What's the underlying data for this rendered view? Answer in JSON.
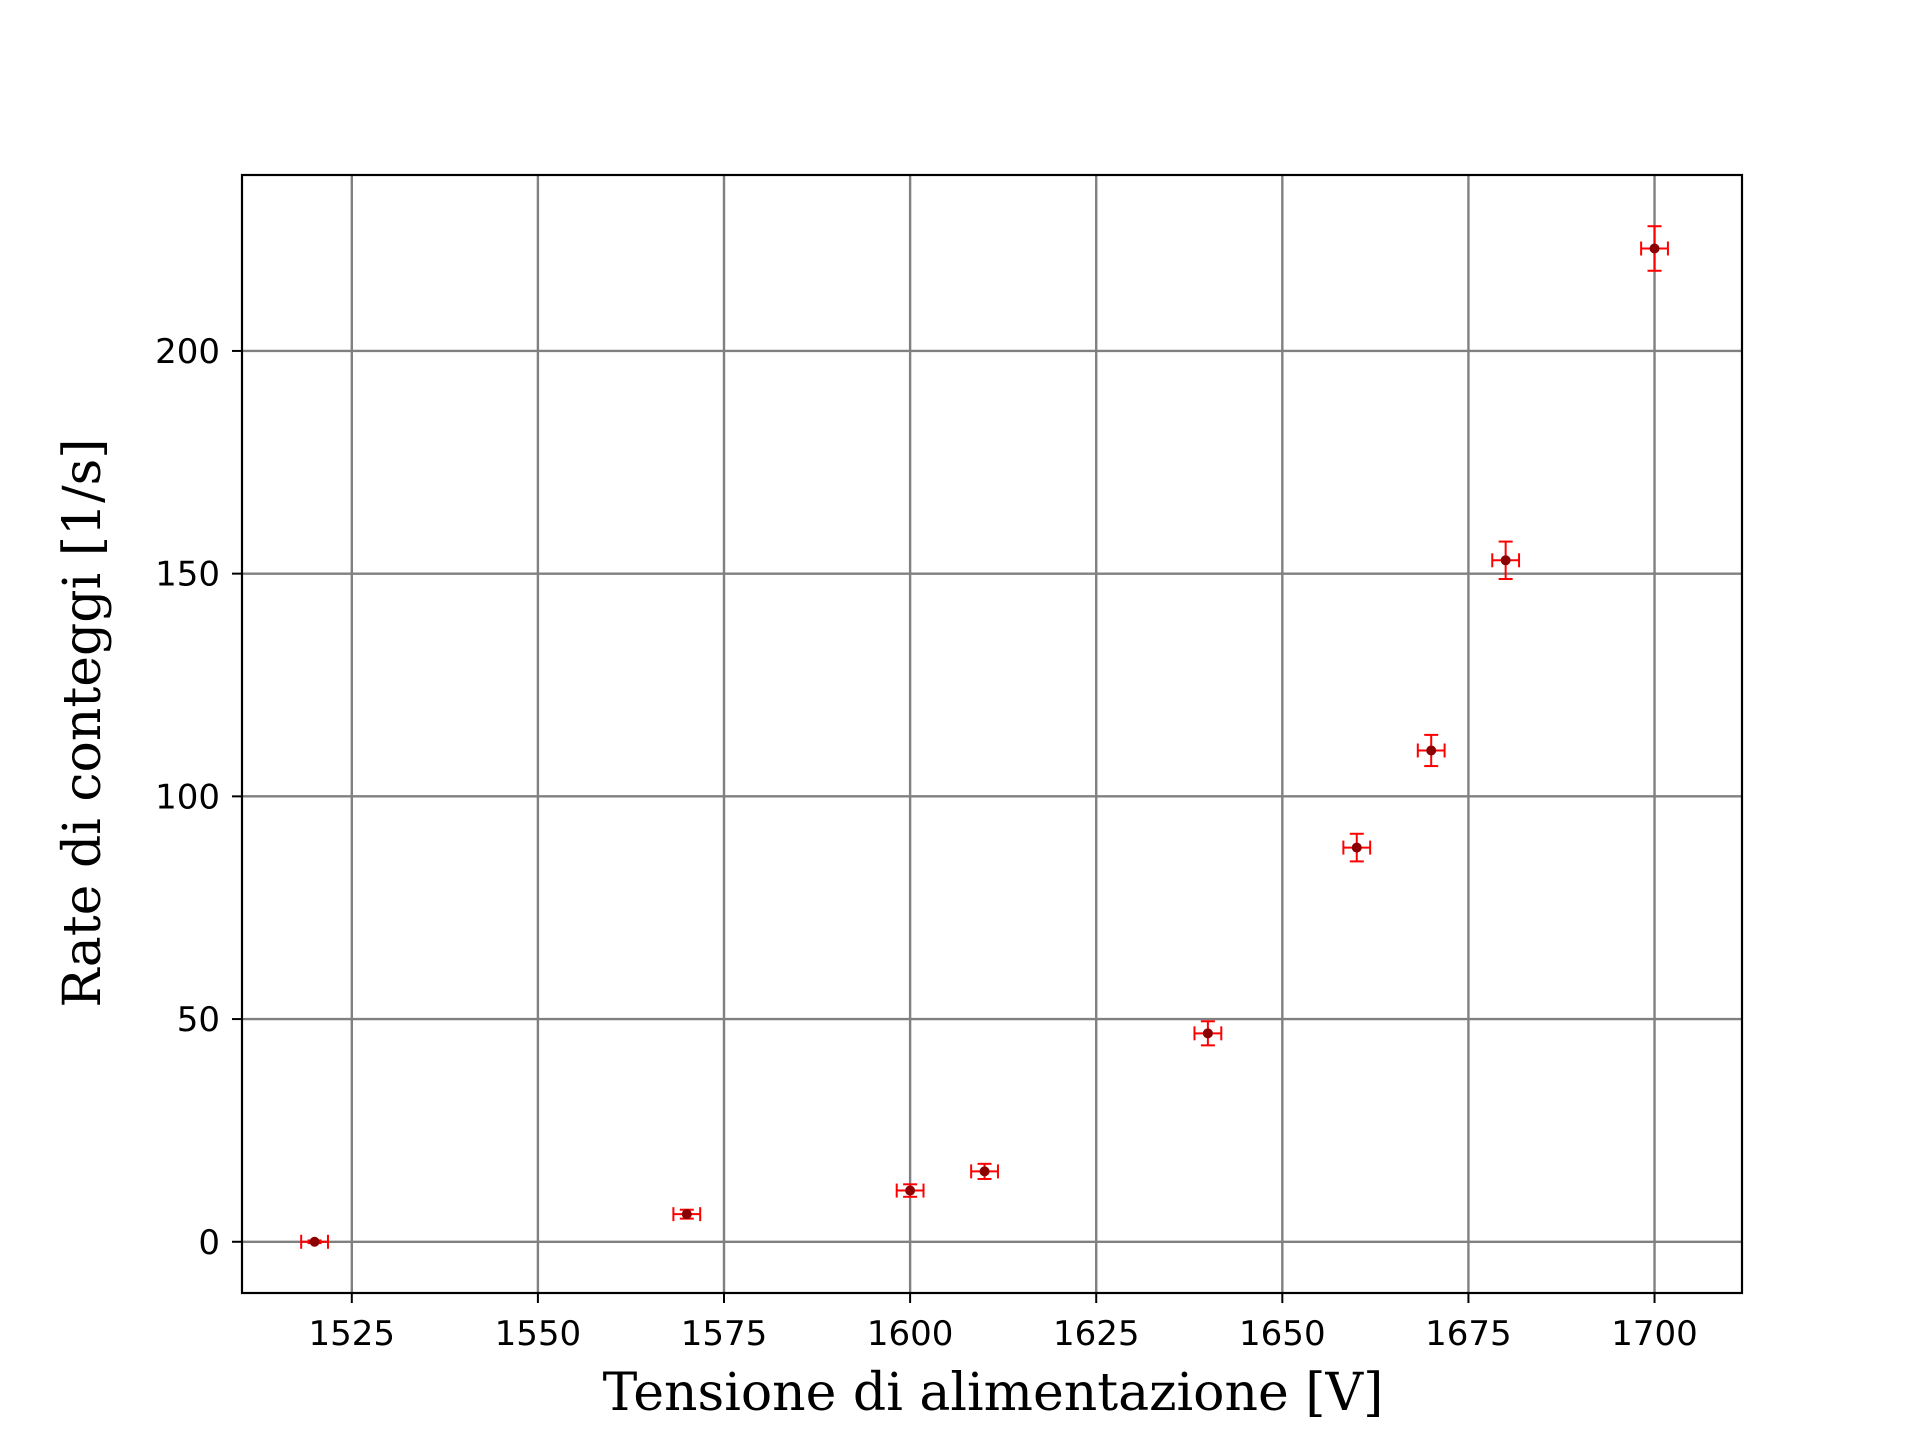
{
  "chart_data": {
    "type": "scatter",
    "title": "",
    "xlabel": "Tensione di alimentazione [V]",
    "ylabel": "Rate di conteggi [1/s]",
    "xlim": [
      1510.25,
      1711.75
    ],
    "ylim": [
      -11.5,
      239.5
    ],
    "xticks": [
      1525,
      1550,
      1575,
      1600,
      1625,
      1650,
      1675,
      1700
    ],
    "xtick_labels": [
      "1525",
      "1550",
      "1575",
      "1600",
      "1625",
      "1650",
      "1675",
      "1700"
    ],
    "yticks": [
      0,
      50,
      100,
      150,
      200
    ],
    "ytick_labels": [
      "0",
      "50",
      "100",
      "150",
      "200"
    ],
    "grid": true,
    "colors": {
      "marker": "#8b0000",
      "errorbar": "#ff0000",
      "grid": "#808080",
      "axes": "#000000"
    },
    "series": [
      {
        "x": [
          1520,
          1570,
          1600,
          1610,
          1640,
          1660,
          1670,
          1680,
          1700
        ],
        "y": [
          0.0,
          6.2,
          11.5,
          15.8,
          46.8,
          88.5,
          110.3,
          153.0,
          223.0
        ],
        "xerr": [
          1.8,
          1.8,
          1.8,
          1.8,
          1.8,
          1.8,
          1.8,
          1.8,
          1.8
        ],
        "yerr": [
          0.3,
          1.0,
          1.4,
          1.7,
          2.7,
          3.1,
          3.5,
          4.2,
          5.0
        ]
      }
    ]
  }
}
